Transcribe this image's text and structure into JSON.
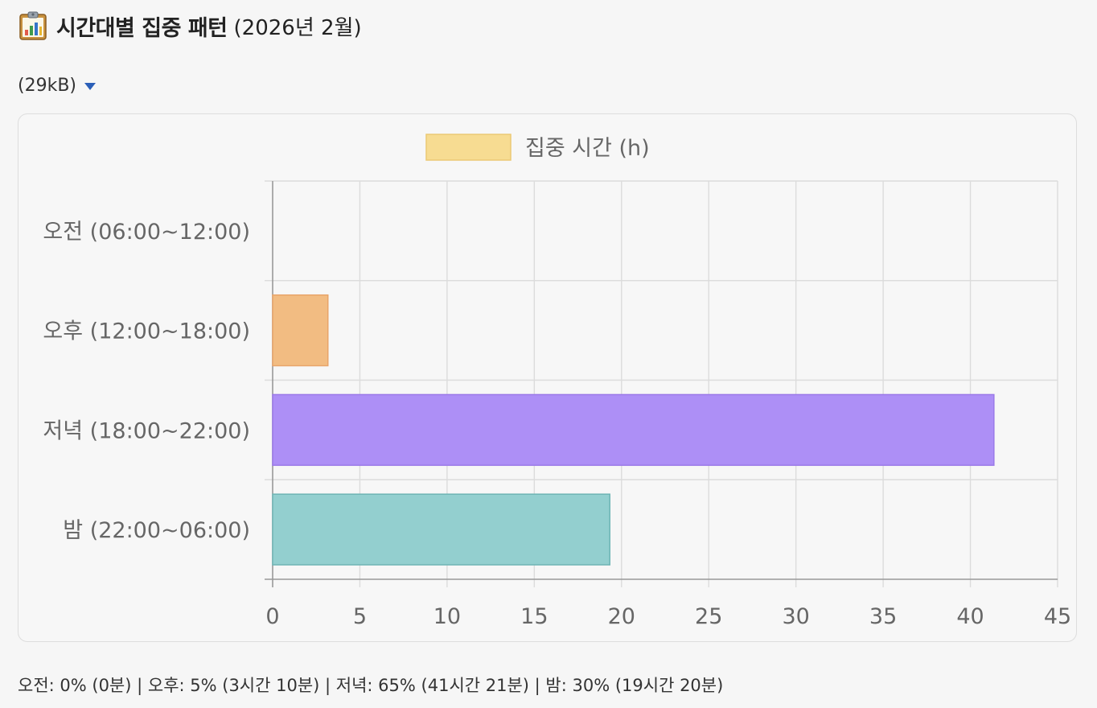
{
  "header": {
    "icon": "bar-chart-clipboard-icon",
    "title": "시간대별 집중 패턴",
    "subtitle": "(2026년 2월)"
  },
  "file": {
    "size_label": "(29kB)",
    "toggle_icon": "caret-down-icon"
  },
  "chart_data": {
    "type": "bar",
    "orientation": "horizontal",
    "categories": [
      "오전 (06:00~12:00)",
      "오후 (12:00~18:00)",
      "저녁 (18:00~22:00)",
      "밤 (22:00~06:00)"
    ],
    "series": [
      {
        "name": "집중 시간 (h)",
        "values": [
          0,
          3.17,
          41.35,
          19.33
        ],
        "colors": [
          "#ff6384",
          "#f2bc82",
          "#ad8ff6",
          "#93cfcf"
        ],
        "borders": [
          "#e0607a",
          "#e8a46a",
          "#9b7ae8",
          "#6fb5b5"
        ]
      }
    ],
    "legend": {
      "position": "top",
      "swatch_color": "#f7dc92",
      "swatch_border": "#ecc974"
    },
    "xlim": [
      0,
      45
    ],
    "xticks": [
      "0",
      "5",
      "10",
      "15",
      "20",
      "25",
      "30",
      "35",
      "40",
      "45"
    ],
    "xtick_values": [
      0,
      5,
      10,
      15,
      20,
      25,
      30,
      35,
      40,
      45
    ],
    "grid": true
  },
  "summary": "오전: 0% (0분) | 오후: 5% (3시간 10분) | 저녁: 65% (41시간 21분) | 밤: 30% (19시간 20분)"
}
